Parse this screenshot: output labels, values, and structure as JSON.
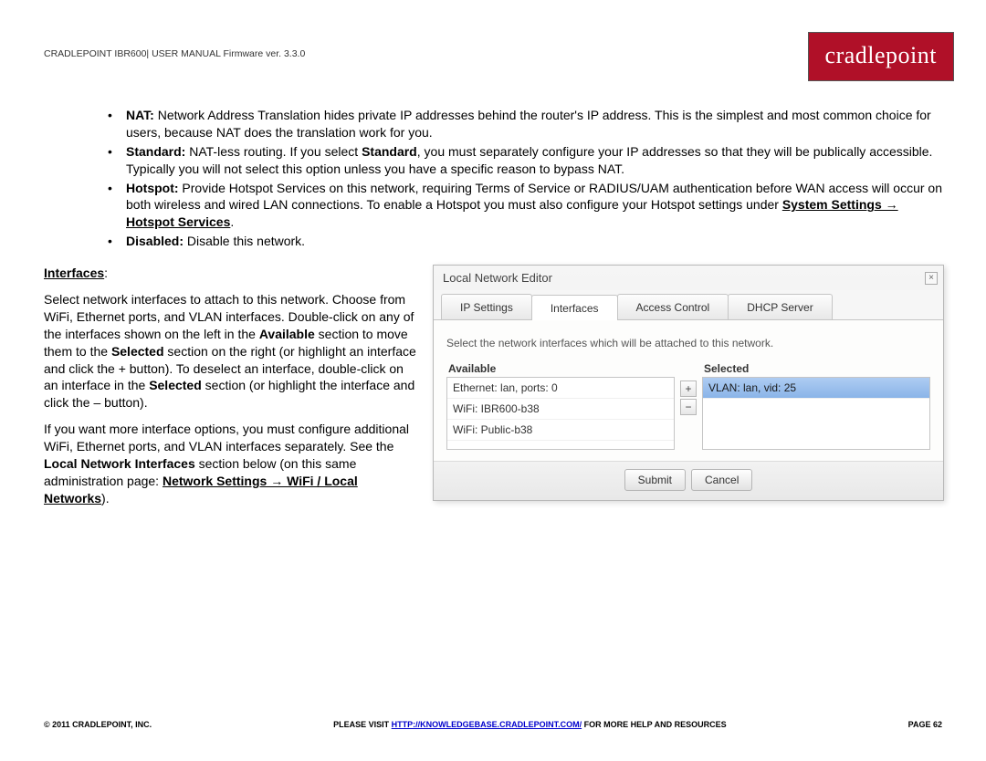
{
  "header": {
    "doc_title": "CRADLEPOINT IBR600| USER MANUAL Firmware ver. 3.3.0",
    "logo_text": "cradlepoint"
  },
  "bullets": {
    "nat_label": "NAT:",
    "nat_text": " Network Address Translation hides private IP addresses behind the router's IP address. This is the simplest and most common choice for users, because NAT does the translation work for you.",
    "standard_label": "Standard:",
    "standard_text1": " NAT-less routing. If you select ",
    "standard_bold": "Standard",
    "standard_text2": ", you must separately configure your IP addresses so that they will be publically accessible. Typically you will not select this option unless you have a specific reason to bypass NAT.",
    "hotspot_label": "Hotspot:",
    "hotspot_text1": " Provide Hotspot Services on this network, requiring Terms of Service or RADIUS/UAM authentication before WAN access will occur on both wireless and wired LAN connections. To enable a Hotspot you must also configure your Hotspot settings under ",
    "hotspot_link": "System Settings → Hotspot Services",
    "hotspot_text2": ".",
    "disabled_label": "Disabled:",
    "disabled_text": " Disable this network."
  },
  "interfaces": {
    "heading": "Interfaces",
    "p1a": "Select network interfaces to attach to this network. Choose from WiFi, Ethernet ports, and VLAN interfaces. Double-click on any of the interfaces shown on the left in the ",
    "p1b": "Available",
    "p1c": " section to move them to the ",
    "p1d": "Selected",
    "p1e": " section on the right (or highlight an interface and click the + button). To deselect an interface, double-click on an interface in the ",
    "p1f": "Selected",
    "p1g": " section (or highlight the interface and click the – button).",
    "p2a": "If you want more interface options, you must configure additional WiFi, Ethernet ports, and VLAN interfaces separately. See the ",
    "p2b": "Local Network Interfaces",
    "p2c": " section below (on this same administration page: ",
    "p2d": "Network Settings → WiFi / Local Networks",
    "p2e": ")."
  },
  "dialog": {
    "title": "Local Network Editor",
    "tabs": [
      "IP Settings",
      "Interfaces",
      "Access Control",
      "DHCP Server"
    ],
    "active_tab": 1,
    "hint": "Select the network interfaces which will be attached to this network.",
    "available_label": "Available",
    "selected_label": "Selected",
    "available_items": [
      "Ethernet: lan, ports: 0",
      "WiFi: IBR600-b38",
      "WiFi: Public-b38"
    ],
    "selected_items": [
      "VLAN: lan, vid: 25"
    ],
    "plus": "+",
    "minus": "−",
    "submit": "Submit",
    "cancel": "Cancel",
    "close": "×"
  },
  "footer": {
    "left": "© 2011 CRADLEPOINT, INC.",
    "center_pre": "PLEASE VISIT ",
    "center_link": "HTTP://KNOWLEDGEBASE.CRADLEPOINT.COM/",
    "center_post": " FOR MORE HELP AND RESOURCES",
    "right": "PAGE 62"
  },
  "colors": {
    "logo_bg": "#b01028",
    "selected_row_bg": "#8ab4e8"
  }
}
